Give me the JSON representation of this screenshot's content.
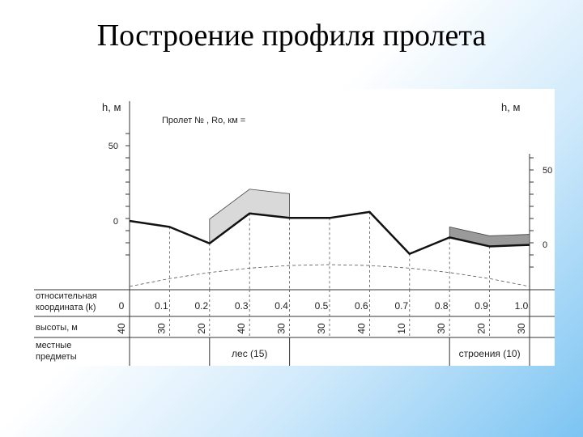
{
  "page": {
    "title": "Построение профиля пролета"
  },
  "chart_data": {
    "type": "line",
    "header_text": "Пролет №      , Ro, км =",
    "axis_left_label": "h, м",
    "axis_right_label": "h, м",
    "left_ticks": [
      "50",
      "0"
    ],
    "right_ticks": [
      "50",
      "0"
    ],
    "x": [
      "0",
      "0.1",
      "0.2",
      "0.3",
      "0.4",
      "0.5",
      "0.6",
      "0.7",
      "0.8",
      "0.9",
      "1.0"
    ],
    "heights": [
      "40",
      "30",
      "20",
      "40",
      "30",
      "30",
      "40",
      "10",
      "30",
      "20",
      "30"
    ],
    "profile": [
      0,
      -4,
      -15,
      5,
      2,
      2,
      6,
      -22,
      -11,
      -17,
      -16
    ],
    "earth_curve": [
      0,
      0.36,
      0.64,
      0.84,
      0.96,
      1.0,
      0.96,
      0.84,
      0.64,
      0.36,
      0
    ],
    "regions": [
      {
        "label": "лес (15)",
        "from": 2,
        "to": 4,
        "fill": "#d9d9d9"
      },
      {
        "label": "строения (10)",
        "from": 8,
        "to": 10,
        "fill": "#9a9a9a"
      }
    ],
    "rows": {
      "coordinate_label": "относительная координата (k)",
      "heights_label": "высоты, м",
      "objects_label": "местные предметы"
    }
  }
}
